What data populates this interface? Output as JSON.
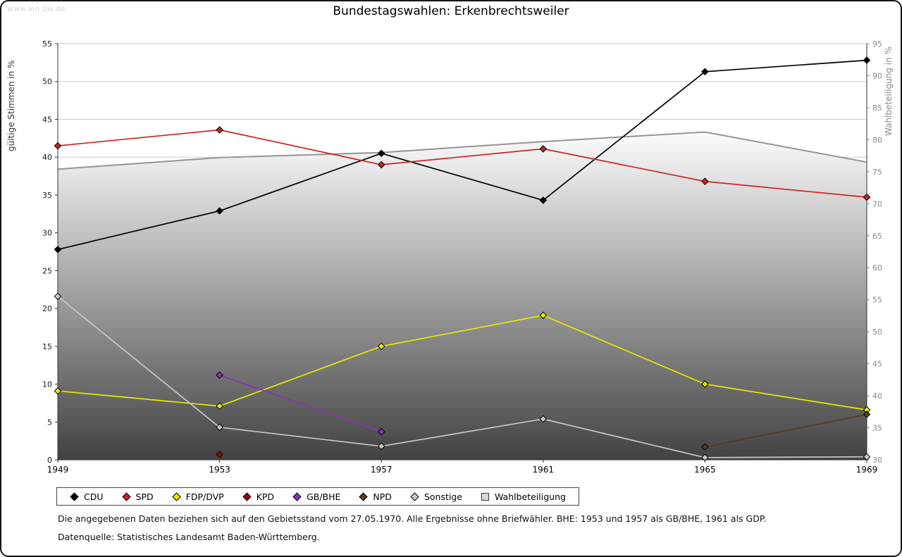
{
  "watermark": "www.leo-bw.de",
  "title": "Bundestagswahlen: Erkenbrechtsweiler",
  "footnotes": [
    "Die angegebenen Daten beziehen sich auf den Gebietsstand vom 27.05.1970. Alle Ergebnisse ohne Briefwähler. BHE: 1953 und 1957 als GB/BHE, 1961 als GDP.",
    "Datenquelle: Statistisches Landesamt Baden-Württemberg."
  ],
  "chart_data": {
    "type": "line",
    "title": "Bundestagswahlen: Erkenbrechtsweiler",
    "categories": [
      "1949",
      "1953",
      "1957",
      "1961",
      "1965",
      "1969"
    ],
    "ylabel_left": "gültige Stimmen in %",
    "ylabel_right": "Wahlbeteiligung in %",
    "ylim_left": [
      0,
      55
    ],
    "ylim_right": [
      30,
      95
    ],
    "ytick_step": 5,
    "grid": true,
    "legend_position": "bottom",
    "series": [
      {
        "name": "CDU",
        "color": "#000000",
        "axis": "left",
        "values": [
          27.8,
          32.9,
          40.5,
          34.3,
          51.3,
          52.8
        ]
      },
      {
        "name": "SPD",
        "color": "#cc2222",
        "axis": "left",
        "values": [
          41.5,
          43.6,
          39.0,
          41.1,
          36.8,
          34.7
        ]
      },
      {
        "name": "FDP/DVP",
        "color": "#e8e800",
        "axis": "left",
        "values": [
          9.1,
          7.1,
          15.0,
          19.1,
          10.0,
          6.6
        ]
      },
      {
        "name": "KPD",
        "color": "#a00000",
        "axis": "left",
        "values": [
          null,
          0.7,
          null,
          null,
          null,
          null
        ]
      },
      {
        "name": "GB/BHE",
        "color": "#8833bb",
        "axis": "left",
        "values": [
          null,
          11.2,
          3.7,
          null,
          null,
          null
        ]
      },
      {
        "name": "NPD",
        "color": "#5c3a21",
        "axis": "left",
        "values": [
          null,
          null,
          null,
          null,
          1.7,
          6.0
        ]
      },
      {
        "name": "Sonstige",
        "color": "#c8c8c8",
        "axis": "left",
        "values": [
          21.6,
          4.3,
          1.8,
          5.4,
          0.3,
          0.4
        ]
      }
    ],
    "participation": {
      "name": "Wahlbeteiligung",
      "axis": "right",
      "line_color": "#949494",
      "fill_top": "#fcfcfc",
      "fill_bottom": "#424242",
      "legend_fill": "#d8d8d8",
      "values": [
        75.4,
        77.2,
        78.0,
        79.7,
        81.2,
        76.5
      ]
    }
  }
}
